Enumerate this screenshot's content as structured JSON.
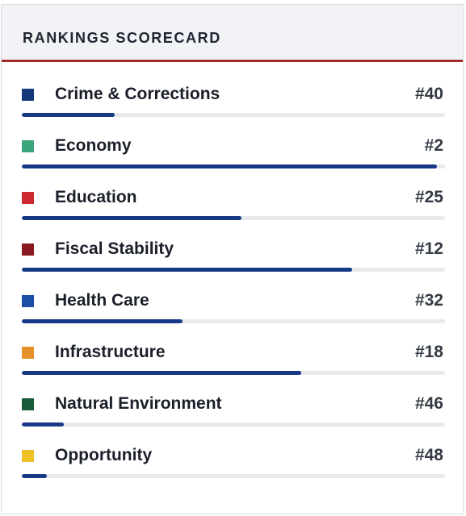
{
  "scorecard": {
    "title": "RANKINGS SCORECARD",
    "bar_color": "#173a86",
    "accent_color": "#a32a2a",
    "items": [
      {
        "label": "Crime & Corrections",
        "rank": "#40",
        "color": "#153a7a",
        "progress": 0.22
      },
      {
        "label": "Economy",
        "rank": "#2",
        "color": "#3aa57a",
        "progress": 0.98
      },
      {
        "label": "Education",
        "rank": "#25",
        "color": "#cc2b32",
        "progress": 0.52
      },
      {
        "label": "Fiscal Stability",
        "rank": "#12",
        "color": "#8a1a1f",
        "progress": 0.78
      },
      {
        "label": "Health Care",
        "rank": "#32",
        "color": "#1c4ea8",
        "progress": 0.38
      },
      {
        "label": "Infrastructure",
        "rank": "#18",
        "color": "#e6912a",
        "progress": 0.66
      },
      {
        "label": "Natural Environment",
        "rank": "#46",
        "color": "#195a3a",
        "progress": 0.1
      },
      {
        "label": "Opportunity",
        "rank": "#48",
        "color": "#f0c028",
        "progress": 0.06
      }
    ]
  }
}
